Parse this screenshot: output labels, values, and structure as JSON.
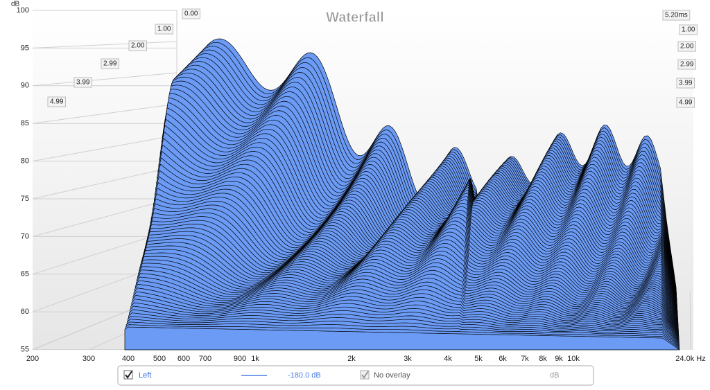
{
  "title": "Waterfall",
  "y_axis": {
    "unit": "dB",
    "ticks": [
      "100",
      "95",
      "90",
      "85",
      "80",
      "75",
      "70",
      "65",
      "60",
      "55"
    ]
  },
  "x_axis": {
    "ticks": [
      "200",
      "300",
      "400",
      "500",
      "600",
      "700",
      "900",
      "1k",
      "2k",
      "3k",
      "4k",
      "5k",
      "6k",
      "7k",
      "8k",
      "9k",
      "10k",
      "24.0k Hz"
    ]
  },
  "time_labels": {
    "left": [
      "0.00",
      "1.00",
      "2.00",
      "2.99",
      "3.99",
      "4.99"
    ],
    "right": [
      "5.20ms",
      "1.00",
      "2.00",
      "2.99",
      "3.99",
      "4.99"
    ]
  },
  "legend": {
    "channel": "Left",
    "level": "-180.0 dB",
    "overlay": "No overlay",
    "unit": "dB"
  }
}
